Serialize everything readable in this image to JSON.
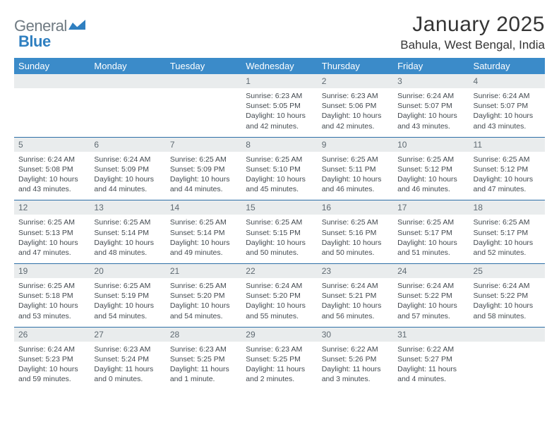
{
  "brand": {
    "name_a": "General",
    "name_b": "Blue"
  },
  "header": {
    "month_title": "January 2025",
    "location": "Bahula, West Bengal, India"
  },
  "colors": {
    "header_bg": "#3b8bc9",
    "header_text": "#ffffff",
    "daynum_bg": "#e9eced",
    "rule": "#2e6fa7",
    "body_text": "#434a50",
    "logo_gray": "#6f7a82",
    "logo_blue": "#2f7fc0"
  },
  "typography": {
    "title_size": 30,
    "location_size": 17,
    "weekday_size": 13,
    "daynum_size": 12,
    "body_size": 10.5
  },
  "days_of_week": [
    "Sunday",
    "Monday",
    "Tuesday",
    "Wednesday",
    "Thursday",
    "Friday",
    "Saturday"
  ],
  "calendar": {
    "first_weekday_index": 3,
    "weeks": [
      [
        null,
        null,
        null,
        {
          "n": "1",
          "sunrise": "6:23 AM",
          "sunset": "5:05 PM",
          "daylight": "10 hours and 42 minutes."
        },
        {
          "n": "2",
          "sunrise": "6:23 AM",
          "sunset": "5:06 PM",
          "daylight": "10 hours and 42 minutes."
        },
        {
          "n": "3",
          "sunrise": "6:24 AM",
          "sunset": "5:07 PM",
          "daylight": "10 hours and 43 minutes."
        },
        {
          "n": "4",
          "sunrise": "6:24 AM",
          "sunset": "5:07 PM",
          "daylight": "10 hours and 43 minutes."
        }
      ],
      [
        {
          "n": "5",
          "sunrise": "6:24 AM",
          "sunset": "5:08 PM",
          "daylight": "10 hours and 43 minutes."
        },
        {
          "n": "6",
          "sunrise": "6:24 AM",
          "sunset": "5:09 PM",
          "daylight": "10 hours and 44 minutes."
        },
        {
          "n": "7",
          "sunrise": "6:25 AM",
          "sunset": "5:09 PM",
          "daylight": "10 hours and 44 minutes."
        },
        {
          "n": "8",
          "sunrise": "6:25 AM",
          "sunset": "5:10 PM",
          "daylight": "10 hours and 45 minutes."
        },
        {
          "n": "9",
          "sunrise": "6:25 AM",
          "sunset": "5:11 PM",
          "daylight": "10 hours and 46 minutes."
        },
        {
          "n": "10",
          "sunrise": "6:25 AM",
          "sunset": "5:12 PM",
          "daylight": "10 hours and 46 minutes."
        },
        {
          "n": "11",
          "sunrise": "6:25 AM",
          "sunset": "5:12 PM",
          "daylight": "10 hours and 47 minutes."
        }
      ],
      [
        {
          "n": "12",
          "sunrise": "6:25 AM",
          "sunset": "5:13 PM",
          "daylight": "10 hours and 47 minutes."
        },
        {
          "n": "13",
          "sunrise": "6:25 AM",
          "sunset": "5:14 PM",
          "daylight": "10 hours and 48 minutes."
        },
        {
          "n": "14",
          "sunrise": "6:25 AM",
          "sunset": "5:14 PM",
          "daylight": "10 hours and 49 minutes."
        },
        {
          "n": "15",
          "sunrise": "6:25 AM",
          "sunset": "5:15 PM",
          "daylight": "10 hours and 50 minutes."
        },
        {
          "n": "16",
          "sunrise": "6:25 AM",
          "sunset": "5:16 PM",
          "daylight": "10 hours and 50 minutes."
        },
        {
          "n": "17",
          "sunrise": "6:25 AM",
          "sunset": "5:17 PM",
          "daylight": "10 hours and 51 minutes."
        },
        {
          "n": "18",
          "sunrise": "6:25 AM",
          "sunset": "5:17 PM",
          "daylight": "10 hours and 52 minutes."
        }
      ],
      [
        {
          "n": "19",
          "sunrise": "6:25 AM",
          "sunset": "5:18 PM",
          "daylight": "10 hours and 53 minutes."
        },
        {
          "n": "20",
          "sunrise": "6:25 AM",
          "sunset": "5:19 PM",
          "daylight": "10 hours and 54 minutes."
        },
        {
          "n": "21",
          "sunrise": "6:25 AM",
          "sunset": "5:20 PM",
          "daylight": "10 hours and 54 minutes."
        },
        {
          "n": "22",
          "sunrise": "6:24 AM",
          "sunset": "5:20 PM",
          "daylight": "10 hours and 55 minutes."
        },
        {
          "n": "23",
          "sunrise": "6:24 AM",
          "sunset": "5:21 PM",
          "daylight": "10 hours and 56 minutes."
        },
        {
          "n": "24",
          "sunrise": "6:24 AM",
          "sunset": "5:22 PM",
          "daylight": "10 hours and 57 minutes."
        },
        {
          "n": "25",
          "sunrise": "6:24 AM",
          "sunset": "5:22 PM",
          "daylight": "10 hours and 58 minutes."
        }
      ],
      [
        {
          "n": "26",
          "sunrise": "6:24 AM",
          "sunset": "5:23 PM",
          "daylight": "10 hours and 59 minutes."
        },
        {
          "n": "27",
          "sunrise": "6:23 AM",
          "sunset": "5:24 PM",
          "daylight": "11 hours and 0 minutes."
        },
        {
          "n": "28",
          "sunrise": "6:23 AM",
          "sunset": "5:25 PM",
          "daylight": "11 hours and 1 minute."
        },
        {
          "n": "29",
          "sunrise": "6:23 AM",
          "sunset": "5:25 PM",
          "daylight": "11 hours and 2 minutes."
        },
        {
          "n": "30",
          "sunrise": "6:22 AM",
          "sunset": "5:26 PM",
          "daylight": "11 hours and 3 minutes."
        },
        {
          "n": "31",
          "sunrise": "6:22 AM",
          "sunset": "5:27 PM",
          "daylight": "11 hours and 4 minutes."
        },
        null
      ]
    ]
  },
  "labels": {
    "sunrise": "Sunrise:",
    "sunset": "Sunset:",
    "daylight": "Daylight:"
  }
}
